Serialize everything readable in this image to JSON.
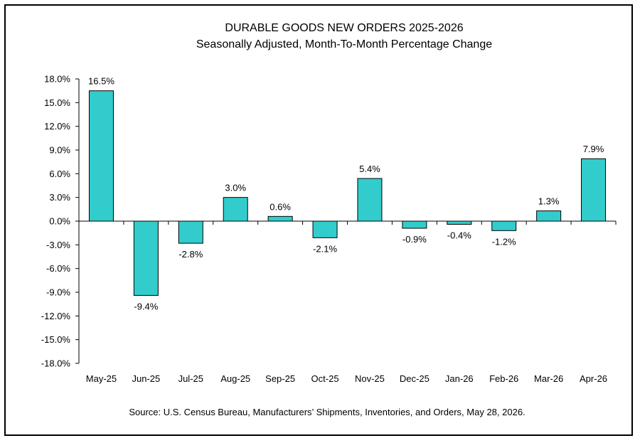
{
  "chart_data": {
    "type": "bar",
    "title": "DURABLE GOODS NEW ORDERS 2025-2026",
    "subtitle": "Seasonally Adjusted,  Month-To-Month Percentage Change",
    "source": "Source: U.S. Census Bureau, Manufacturers’ Shipments, Inventories, and Orders, May 28, 2026.",
    "categories": [
      "May-25",
      "Jun-25",
      "Jul-25",
      "Aug-25",
      "Sep-25",
      "Oct-25",
      "Nov-25",
      "Dec-25",
      "Jan-26",
      "Feb-26",
      "Mar-26",
      "Apr-26"
    ],
    "values": [
      16.5,
      -9.4,
      -2.8,
      3.0,
      0.6,
      -2.1,
      5.4,
      -0.9,
      -0.4,
      -1.2,
      1.3,
      7.9
    ],
    "value_labels": [
      "16.5%",
      "-9.4%",
      "-2.8%",
      "3.0%",
      "0.6%",
      "-2.1%",
      "5.4%",
      "-0.9%",
      "-0.4%",
      "-1.2%",
      "1.3%",
      "7.9%"
    ],
    "ylim": [
      -18,
      18
    ],
    "yticks": [
      18,
      15,
      12,
      9,
      6,
      3,
      0,
      -3,
      -6,
      -9,
      -12,
      -15,
      -18
    ],
    "ytick_labels": [
      "18.0%",
      "15.0%",
      "12.0%",
      "9.0%",
      "6.0%",
      "3.0%",
      "0.0%",
      "-3.0%",
      "-6.0%",
      "-9.0%",
      "-12.0%",
      "-15.0%",
      "-18.0%"
    ],
    "grid": false,
    "legend": "none",
    "bar_color": "#33cccc",
    "bar_edge_color": "#000000"
  }
}
